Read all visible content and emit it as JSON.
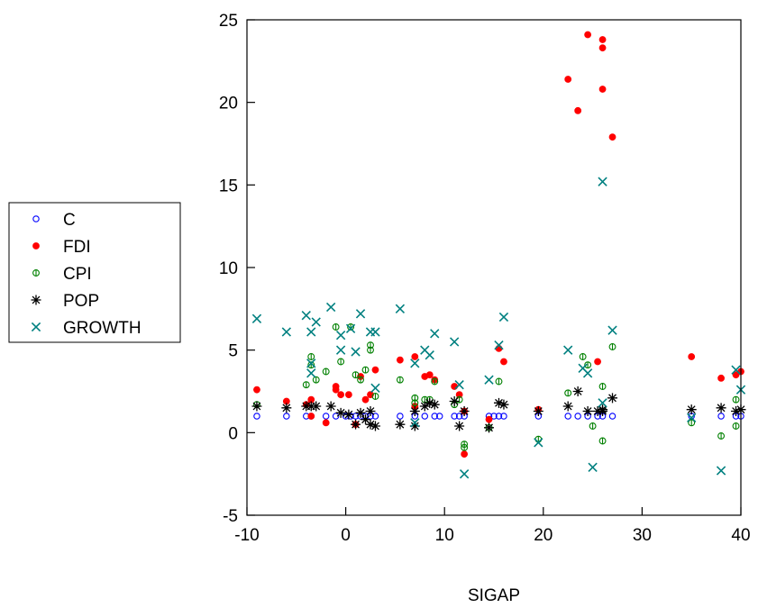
{
  "chart_data": {
    "type": "scatter",
    "xlabel": "SIGAP",
    "ylabel": "",
    "xlim": [
      -10,
      40
    ],
    "ylim": [
      -5,
      25
    ],
    "x_ticks": [
      -10,
      0,
      10,
      20,
      30,
      40
    ],
    "y_ticks": [
      -5,
      0,
      5,
      10,
      15,
      20,
      25
    ],
    "grid": false,
    "legend_position": "left",
    "series": [
      {
        "name": "C",
        "marker": "circle-open",
        "color": "#0000ff",
        "points": [
          [
            -9,
            1
          ],
          [
            -6,
            1
          ],
          [
            -4,
            1
          ],
          [
            -3.5,
            1
          ],
          [
            -2,
            1
          ],
          [
            -1,
            1
          ],
          [
            0,
            1
          ],
          [
            0.5,
            1
          ],
          [
            1,
            1
          ],
          [
            1.5,
            1
          ],
          [
            2,
            1
          ],
          [
            2.5,
            1
          ],
          [
            3,
            1
          ],
          [
            5.5,
            1
          ],
          [
            7,
            1
          ],
          [
            8,
            1
          ],
          [
            9,
            1
          ],
          [
            9.5,
            1
          ],
          [
            11,
            1
          ],
          [
            11.5,
            1
          ],
          [
            12,
            1
          ],
          [
            14.5,
            1
          ],
          [
            15,
            1
          ],
          [
            15.5,
            1
          ],
          [
            16,
            1
          ],
          [
            19.5,
            1
          ],
          [
            22.5,
            1
          ],
          [
            23.5,
            1
          ],
          [
            24.5,
            1
          ],
          [
            25.5,
            1
          ],
          [
            26,
            1
          ],
          [
            27,
            1
          ],
          [
            35,
            1
          ],
          [
            38,
            1
          ],
          [
            39.5,
            1
          ],
          [
            40,
            1
          ]
        ]
      },
      {
        "name": "FDI",
        "marker": "dot",
        "color": "#ff0000",
        "points": [
          [
            -9,
            2.6
          ],
          [
            -6,
            1.9
          ],
          [
            -4,
            1.7
          ],
          [
            -3.5,
            2.0
          ],
          [
            -3.5,
            1.0
          ],
          [
            -2,
            0.6
          ],
          [
            -1,
            2.8
          ],
          [
            -1,
            2.6
          ],
          [
            -0.5,
            2.3
          ],
          [
            0.3,
            2.3
          ],
          [
            1,
            0.5
          ],
          [
            1.5,
            3.4
          ],
          [
            2,
            2.0
          ],
          [
            2.5,
            2.3
          ],
          [
            3,
            3.8
          ],
          [
            5.5,
            4.4
          ],
          [
            7,
            4.6
          ],
          [
            7,
            1.6
          ],
          [
            8,
            3.4
          ],
          [
            8.5,
            3.5
          ],
          [
            9,
            3.2
          ],
          [
            11,
            2.8
          ],
          [
            11.5,
            2.3
          ],
          [
            12,
            1.3
          ],
          [
            12,
            -1.3
          ],
          [
            14.5,
            0.8
          ],
          [
            15.5,
            5.1
          ],
          [
            16,
            4.3
          ],
          [
            19.5,
            1.4
          ],
          [
            22.5,
            21.4
          ],
          [
            23.5,
            19.5
          ],
          [
            24.5,
            24.1
          ],
          [
            25.5,
            4.3
          ],
          [
            26,
            23.8
          ],
          [
            26,
            23.3
          ],
          [
            26,
            20.8
          ],
          [
            27,
            17.9
          ],
          [
            35,
            4.6
          ],
          [
            38,
            3.3
          ],
          [
            39.5,
            3.5
          ],
          [
            40,
            3.7
          ]
        ]
      },
      {
        "name": "CPI",
        "marker": "circle-half",
        "color": "#008000",
        "points": [
          [
            -9,
            1.7
          ],
          [
            -4,
            2.9
          ],
          [
            -3.5,
            4.6
          ],
          [
            -3.5,
            4.1
          ],
          [
            -3,
            3.2
          ],
          [
            -2,
            3.7
          ],
          [
            -1,
            6.4
          ],
          [
            -0.5,
            4.3
          ],
          [
            0.5,
            6.4
          ],
          [
            1,
            3.5
          ],
          [
            1.5,
            3.2
          ],
          [
            2,
            3.8
          ],
          [
            2.5,
            5.3
          ],
          [
            2.5,
            5.0
          ],
          [
            3,
            2.2
          ],
          [
            5.5,
            3.2
          ],
          [
            7,
            2.1
          ],
          [
            7,
            1.8
          ],
          [
            8,
            2.0
          ],
          [
            8.5,
            2.0
          ],
          [
            9,
            3.1
          ],
          [
            11,
            1.7
          ],
          [
            11.5,
            2.0
          ],
          [
            12,
            -0.7
          ],
          [
            12,
            -0.9
          ],
          [
            14.5,
            0.3
          ],
          [
            15.5,
            3.1
          ],
          [
            19.5,
            -0.4
          ],
          [
            22.5,
            2.4
          ],
          [
            24,
            4.6
          ],
          [
            24.5,
            4.1
          ],
          [
            25,
            0.4
          ],
          [
            26,
            2.8
          ],
          [
            26,
            -0.5
          ],
          [
            27,
            5.2
          ],
          [
            35,
            0.6
          ],
          [
            38,
            -0.2
          ],
          [
            39.5,
            2.0
          ],
          [
            39.5,
            0.4
          ]
        ]
      },
      {
        "name": "POP",
        "marker": "asterisk",
        "color": "#000000",
        "points": [
          [
            -9,
            1.6
          ],
          [
            -6,
            1.5
          ],
          [
            -4,
            1.6
          ],
          [
            -3.5,
            1.6
          ],
          [
            -3,
            1.6
          ],
          [
            -1.5,
            1.6
          ],
          [
            -0.5,
            1.2
          ],
          [
            0.3,
            1.1
          ],
          [
            1,
            0.5
          ],
          [
            1.5,
            1.2
          ],
          [
            2,
            0.8
          ],
          [
            2.5,
            0.5
          ],
          [
            3,
            0.4
          ],
          [
            2.5,
            1.3
          ],
          [
            5.5,
            0.5
          ],
          [
            7,
            0.4
          ],
          [
            7,
            1.3
          ],
          [
            8,
            1.6
          ],
          [
            8.5,
            1.8
          ],
          [
            9,
            1.7
          ],
          [
            11,
            1.9
          ],
          [
            11.5,
            0.4
          ],
          [
            12,
            1.3
          ],
          [
            14.5,
            0.3
          ],
          [
            15.5,
            1.8
          ],
          [
            16,
            1.7
          ],
          [
            19.5,
            1.3
          ],
          [
            22.5,
            1.6
          ],
          [
            23.5,
            2.5
          ],
          [
            24.5,
            1.3
          ],
          [
            25.5,
            1.3
          ],
          [
            26,
            1.4
          ],
          [
            26,
            1.3
          ],
          [
            27,
            2.1
          ],
          [
            35,
            1.4
          ],
          [
            38,
            1.5
          ],
          [
            39.5,
            1.3
          ],
          [
            40,
            1.4
          ]
        ]
      },
      {
        "name": "GROWTH",
        "marker": "cross",
        "color": "#008080",
        "points": [
          [
            -9,
            6.9
          ],
          [
            -6,
            6.1
          ],
          [
            -4,
            7.1
          ],
          [
            -3.5,
            6.1
          ],
          [
            -3.5,
            4.2
          ],
          [
            -3.5,
            3.6
          ],
          [
            -3,
            6.7
          ],
          [
            -1.5,
            7.6
          ],
          [
            -0.5,
            5.9
          ],
          [
            -0.5,
            5.0
          ],
          [
            0.5,
            6.3
          ],
          [
            1,
            4.9
          ],
          [
            1.5,
            7.2
          ],
          [
            2.5,
            6.1
          ],
          [
            3,
            6.1
          ],
          [
            3,
            2.7
          ],
          [
            5.5,
            7.5
          ],
          [
            7,
            4.2
          ],
          [
            7,
            0.6
          ],
          [
            8,
            5.0
          ],
          [
            8.5,
            4.7
          ],
          [
            9,
            6.0
          ],
          [
            11,
            5.5
          ],
          [
            11.5,
            2.9
          ],
          [
            12,
            -2.5
          ],
          [
            14.5,
            3.2
          ],
          [
            15.5,
            5.3
          ],
          [
            16,
            7.0
          ],
          [
            19.5,
            -0.6
          ],
          [
            22.5,
            5.0
          ],
          [
            24,
            3.9
          ],
          [
            24.5,
            3.6
          ],
          [
            25,
            -2.1
          ],
          [
            26,
            15.2
          ],
          [
            26,
            1.8
          ],
          [
            27,
            6.2
          ],
          [
            35,
            0.9
          ],
          [
            38,
            -2.3
          ],
          [
            39.5,
            3.8
          ],
          [
            40,
            2.6
          ]
        ]
      }
    ]
  }
}
